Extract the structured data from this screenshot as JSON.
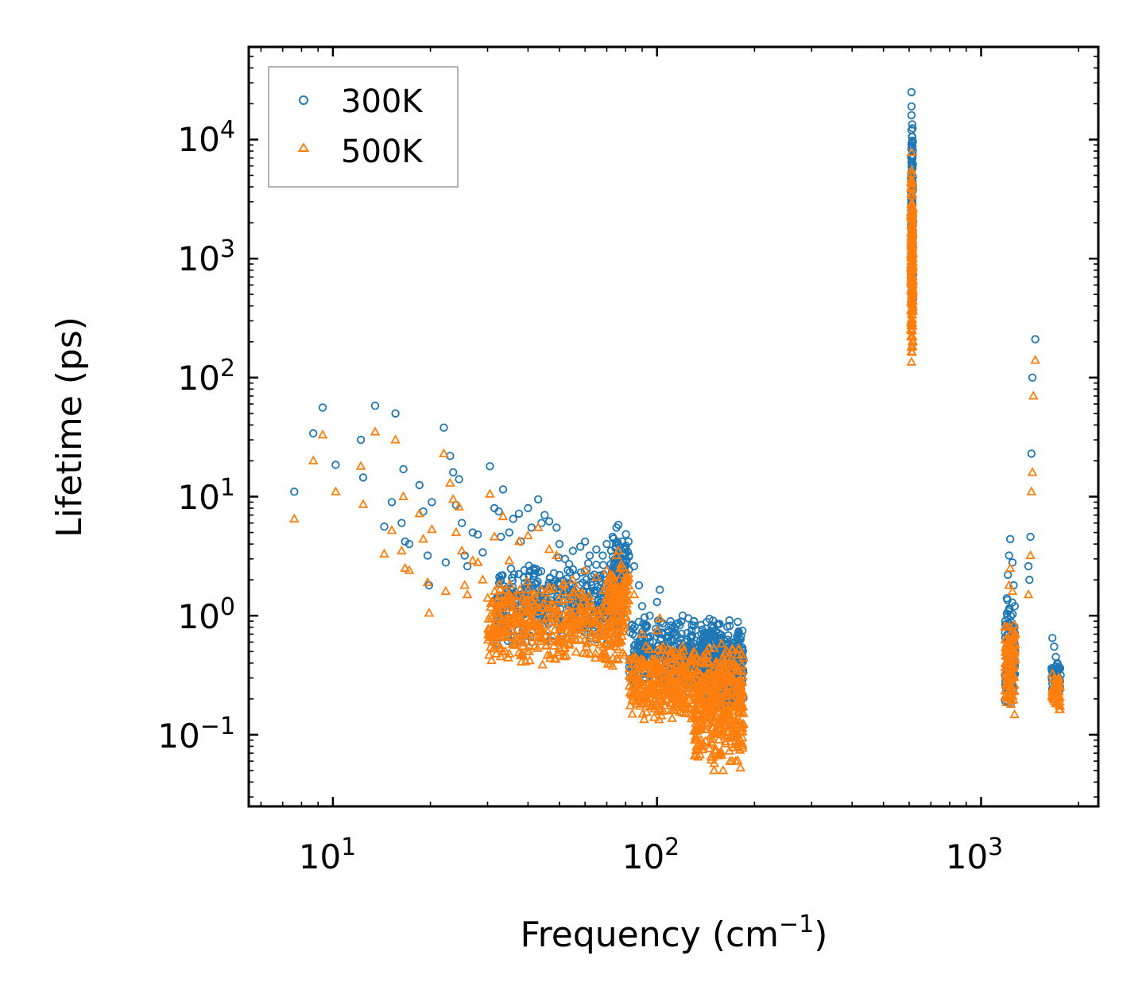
{
  "chart_data": {
    "type": "scatter",
    "title": "",
    "xlabel": "Frequency (cm",
    "xlabel_sup": "−1",
    "xlabel_tail": ")",
    "ylabel": "Lifetime (ps)",
    "xscale": "log",
    "yscale": "log",
    "xlim": [
      5.5,
      2300
    ],
    "ylim": [
      0.025,
      60000
    ],
    "grid": false,
    "legend_position": "top-left",
    "x_tick_labels": [
      {
        "base": "10",
        "exp": "1"
      },
      {
        "base": "10",
        "exp": "2"
      },
      {
        "base": "10",
        "exp": "3"
      }
    ],
    "y_tick_labels": [
      {
        "base": "10",
        "exp": "−1"
      },
      {
        "base": "10",
        "exp": "0"
      },
      {
        "base": "10",
        "exp": "1"
      },
      {
        "base": "10",
        "exp": "2"
      },
      {
        "base": "10",
        "exp": "3"
      },
      {
        "base": "10",
        "exp": "4"
      }
    ],
    "series": [
      {
        "name": "300K",
        "marker": "circle",
        "color": "#1f77b4",
        "points": [
          [
            7.6,
            11
          ],
          [
            8.7,
            34
          ],
          [
            9.3,
            56
          ],
          [
            10.2,
            18.5
          ],
          [
            12.2,
            30
          ],
          [
            12.4,
            14.5
          ],
          [
            13.5,
            58
          ],
          [
            14.4,
            5.6
          ],
          [
            15.2,
            9
          ],
          [
            15.6,
            50
          ],
          [
            16.5,
            17
          ],
          [
            16.3,
            6
          ],
          [
            16.7,
            4.2
          ],
          [
            17.2,
            4
          ],
          [
            18.5,
            12.5
          ],
          [
            19,
            7.5
          ],
          [
            19.6,
            3.2
          ],
          [
            20.2,
            9
          ],
          [
            19.8,
            1.8
          ],
          [
            22,
            38
          ],
          [
            22.3,
            2.8
          ],
          [
            23,
            22
          ],
          [
            23.5,
            16
          ],
          [
            24,
            8.5
          ],
          [
            24.5,
            14
          ],
          [
            25,
            6
          ],
          [
            25.5,
            3.2
          ],
          [
            26,
            2.6
          ],
          [
            27,
            5
          ],
          [
            28,
            4.8
          ],
          [
            29,
            3.4
          ],
          [
            30.5,
            18
          ],
          [
            31.5,
            8
          ],
          [
            32.5,
            7.5
          ],
          [
            33,
            4.6
          ],
          [
            33.5,
            11.5
          ],
          [
            35,
            5
          ],
          [
            36,
            6.5
          ],
          [
            37.5,
            7.2
          ],
          [
            38,
            4.2
          ],
          [
            40,
            8
          ],
          [
            41,
            5.5
          ],
          [
            43,
            9.5
          ],
          [
            44,
            6
          ],
          [
            45,
            7
          ],
          [
            46.5,
            6.2
          ],
          [
            49,
            5.5
          ],
          [
            50,
            4
          ],
          [
            52,
            3
          ],
          [
            55,
            3.5
          ],
          [
            58,
            3.8
          ],
          [
            60,
            4.2
          ],
          [
            62,
            3.2
          ],
          [
            65,
            3.6
          ],
          [
            68,
            3.2
          ],
          [
            70,
            4
          ],
          [
            73,
            4.6
          ],
          [
            75,
            5.5
          ],
          [
            76,
            5.8
          ],
          [
            78,
            4.2
          ],
          [
            80,
            3.6
          ],
          [
            82,
            3.2
          ],
          [
            85,
            2.6
          ],
          [
            88,
            1.8
          ],
          [
            90,
            1.2
          ],
          [
            95,
            1
          ],
          [
            100,
            1.3
          ],
          [
            102,
            1.65
          ],
          [
            110,
            0.9
          ],
          [
            115,
            0.85
          ],
          [
            120,
            1.0
          ],
          [
            125,
            0.95
          ],
          [
            130,
            0.9
          ],
          [
            140,
            0.72
          ],
          [
            150,
            0.68
          ],
          [
            160,
            0.55
          ],
          [
            170,
            0.55
          ],
          [
            178,
            0.48
          ],
          [
            180,
            0.38
          ],
          [
            183,
            0.3
          ],
          [
            170,
            0.12
          ],
          [
            175,
            0.1
          ],
          [
            610,
            25000
          ],
          [
            610,
            19000
          ],
          [
            610,
            16000
          ],
          [
            610,
            12000
          ],
          [
            610,
            9000
          ],
          [
            610,
            6500
          ],
          [
            610,
            4500
          ],
          [
            610,
            3000
          ],
          [
            1200,
            1.4
          ],
          [
            1210,
            2.2
          ],
          [
            1220,
            3.2
          ],
          [
            1230,
            4.4
          ],
          [
            1250,
            2.8
          ],
          [
            1260,
            1.8
          ],
          [
            1270,
            1.2
          ],
          [
            1400,
            2.6
          ],
          [
            1410,
            2.0
          ],
          [
            1420,
            4.6
          ],
          [
            1430,
            23
          ],
          [
            1440,
            100
          ],
          [
            1470,
            210
          ],
          [
            1660,
            0.65
          ],
          [
            1680,
            0.55
          ],
          [
            1700,
            0.45
          ],
          [
            1720,
            0.4
          ],
          [
            1740,
            0.35
          ]
        ],
        "clusters": [
          {
            "x": [
              32,
              80
            ],
            "y": [
              0.55,
              3.2
            ],
            "count": 420
          },
          {
            "x": [
              72,
              82
            ],
            "y": [
              1.2,
              5.2
            ],
            "count": 80
          },
          {
            "x": [
              82,
              185
            ],
            "y": [
              0.22,
              1.0
            ],
            "count": 520
          },
          {
            "x": [
              130,
              185
            ],
            "y": [
              0.15,
              0.6
            ],
            "count": 220
          },
          {
            "x": [
              608,
              616
            ],
            "y": [
              300,
              16000
            ],
            "count": 180
          },
          {
            "x": [
              1185,
              1275
            ],
            "y": [
              0.15,
              1.6
            ],
            "count": 110
          },
          {
            "x": [
              1650,
              1760
            ],
            "y": [
              0.2,
              0.45
            ],
            "count": 50
          }
        ]
      },
      {
        "name": "500K",
        "marker": "triangle",
        "color": "#ff7f0e",
        "points": [
          [
            7.6,
            6.5
          ],
          [
            8.7,
            20
          ],
          [
            9.3,
            33
          ],
          [
            10.2,
            11
          ],
          [
            12.2,
            18
          ],
          [
            12.4,
            8.6
          ],
          [
            13.5,
            35
          ],
          [
            14.4,
            3.3
          ],
          [
            15.2,
            5.2
          ],
          [
            15.6,
            30
          ],
          [
            16.5,
            10
          ],
          [
            16.3,
            3.5
          ],
          [
            16.7,
            2.5
          ],
          [
            17.2,
            2.4
          ],
          [
            18.5,
            7.2
          ],
          [
            19,
            4.4
          ],
          [
            19.6,
            1.9
          ],
          [
            20.2,
            5.3
          ],
          [
            19.8,
            1.05
          ],
          [
            22,
            23
          ],
          [
            22.3,
            1.6
          ],
          [
            23,
            13
          ],
          [
            23.5,
            9.5
          ],
          [
            24,
            5
          ],
          [
            24.5,
            8.2
          ],
          [
            25,
            3.5
          ],
          [
            25.5,
            1.8
          ],
          [
            26,
            1.5
          ],
          [
            27,
            2.9
          ],
          [
            28,
            2.8
          ],
          [
            29,
            2
          ],
          [
            30.5,
            10.5
          ],
          [
            31.5,
            4.6
          ],
          [
            33.5,
            6.8
          ],
          [
            35,
            2.9
          ],
          [
            37.5,
            4.2
          ],
          [
            40,
            4.7
          ],
          [
            43,
            5.5
          ],
          [
            46.5,
            3.6
          ],
          [
            49,
            3.2
          ],
          [
            55,
            2
          ],
          [
            60,
            2.4
          ],
          [
            65,
            2.1
          ],
          [
            70,
            2.4
          ],
          [
            75,
            3.2
          ],
          [
            76,
            3.5
          ],
          [
            80,
            2.1
          ],
          [
            85,
            1.5
          ],
          [
            90,
            0.7
          ],
          [
            100,
            0.75
          ],
          [
            102,
            0.95
          ],
          [
            110,
            0.5
          ],
          [
            120,
            0.55
          ],
          [
            130,
            0.5
          ],
          [
            140,
            0.4
          ],
          [
            150,
            0.35
          ],
          [
            160,
            0.3
          ],
          [
            170,
            0.3
          ],
          [
            178,
            0.25
          ],
          [
            180,
            0.2
          ],
          [
            183,
            0.17
          ],
          [
            160,
            0.05
          ],
          [
            175,
            0.06
          ],
          [
            150,
            0.05
          ],
          [
            610,
            7800
          ],
          [
            610,
            5500
          ],
          [
            610,
            4000
          ],
          [
            610,
            2500
          ],
          [
            610,
            1500
          ],
          [
            610,
            700
          ],
          [
            610,
            300
          ],
          [
            610,
            180
          ],
          [
            610,
            135
          ],
          [
            1200,
            0.8
          ],
          [
            1220,
            1.8
          ],
          [
            1230,
            2.5
          ],
          [
            1250,
            1.6
          ],
          [
            1270,
            0.7
          ],
          [
            1400,
            1.5
          ],
          [
            1420,
            3.2
          ],
          [
            1430,
            11
          ],
          [
            1440,
            16
          ],
          [
            1450,
            70
          ],
          [
            1470,
            140
          ],
          [
            1680,
            0.3
          ],
          [
            1700,
            0.25
          ],
          [
            1720,
            0.22
          ],
          [
            1740,
            0.2
          ]
        ],
        "clusters": [
          {
            "x": [
              30,
              80
            ],
            "y": [
              0.35,
              2.0
            ],
            "count": 460
          },
          {
            "x": [
              70,
              82
            ],
            "y": [
              0.8,
              2.8
            ],
            "count": 80
          },
          {
            "x": [
              82,
              185
            ],
            "y": [
              0.12,
              0.6
            ],
            "count": 520
          },
          {
            "x": [
              130,
              185
            ],
            "y": [
              0.05,
              0.35
            ],
            "count": 240
          },
          {
            "x": [
              608,
              616
            ],
            "y": [
              130,
              6000
            ],
            "count": 200
          },
          {
            "x": [
              1185,
              1275
            ],
            "y": [
              0.13,
              1.0
            ],
            "count": 110
          },
          {
            "x": [
              1650,
              1760
            ],
            "y": [
              0.15,
              0.35
            ],
            "count": 50
          }
        ]
      }
    ]
  }
}
